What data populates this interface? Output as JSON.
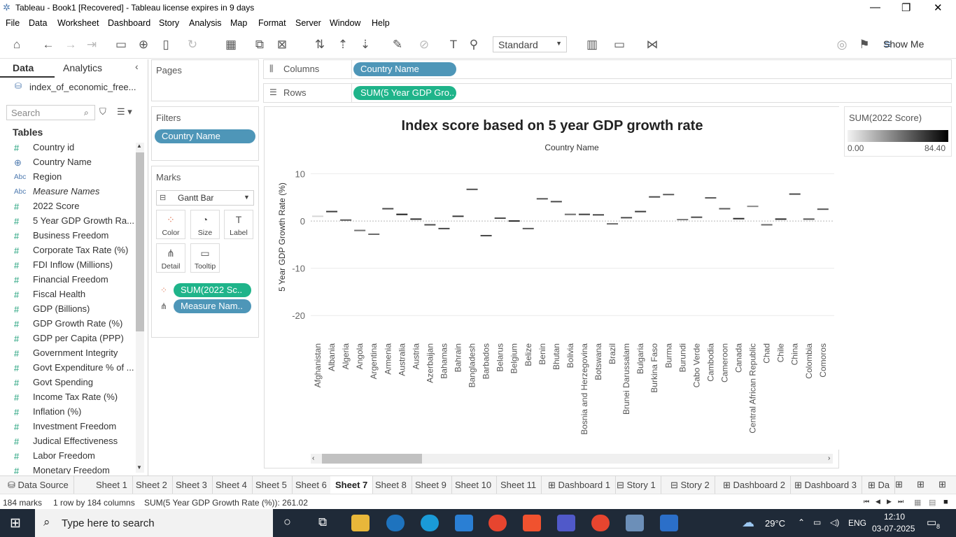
{
  "window": {
    "title": "Tableau - Book1 [Recovered] - Tableau license expires in 9 days"
  },
  "menu": [
    "File",
    "Data",
    "Worksheet",
    "Dashboard",
    "Story",
    "Analysis",
    "Map",
    "Format",
    "Server",
    "Window",
    "Help"
  ],
  "toolbar": {
    "fit_mode": "Standard",
    "show_me": "Show Me"
  },
  "left_pane": {
    "tab_data": "Data",
    "tab_analytics": "Analytics",
    "datasource": "index_of_economic_free...",
    "search_placeholder": "Search",
    "tables_header": "Tables",
    "fields": [
      {
        "icon": "#",
        "name": "Country id",
        "italic": false
      },
      {
        "icon": "globe",
        "name": "Country Name",
        "italic": false
      },
      {
        "icon": "Abc",
        "name": "Region",
        "italic": false
      },
      {
        "icon": "Abc",
        "name": "Measure Names",
        "italic": true
      },
      {
        "icon": "#",
        "name": "2022 Score",
        "italic": false
      },
      {
        "icon": "#",
        "name": "5 Year GDP Growth Ra...",
        "italic": false
      },
      {
        "icon": "#",
        "name": "Business Freedom",
        "italic": false
      },
      {
        "icon": "#",
        "name": "Corporate Tax Rate (%)",
        "italic": false
      },
      {
        "icon": "#",
        "name": "FDI Inflow (Millions)",
        "italic": false
      },
      {
        "icon": "#",
        "name": "Financial Freedom",
        "italic": false
      },
      {
        "icon": "#",
        "name": "Fiscal Health",
        "italic": false
      },
      {
        "icon": "#",
        "name": "GDP (Billions)",
        "italic": false
      },
      {
        "icon": "#",
        "name": "GDP Growth Rate (%)",
        "italic": false
      },
      {
        "icon": "#",
        "name": "GDP per Capita (PPP)",
        "italic": false
      },
      {
        "icon": "#",
        "name": "Government Integrity",
        "italic": false
      },
      {
        "icon": "#",
        "name": "Govt Expenditure % of ...",
        "italic": false
      },
      {
        "icon": "#",
        "name": "Govt Spending",
        "italic": false
      },
      {
        "icon": "#",
        "name": "Income Tax Rate (%)",
        "italic": false
      },
      {
        "icon": "#",
        "name": "Inflation (%)",
        "italic": false
      },
      {
        "icon": "#",
        "name": "Investment Freedom",
        "italic": false
      },
      {
        "icon": "#",
        "name": "Judical Effectiveness",
        "italic": false
      },
      {
        "icon": "#",
        "name": "Labor Freedom",
        "italic": false
      },
      {
        "icon": "#",
        "name": "Monetary Freedom",
        "italic": false
      }
    ]
  },
  "pages_label": "Pages",
  "filters": {
    "label": "Filters",
    "pill": "Country Name"
  },
  "marks": {
    "label": "Marks",
    "type": "Gantt Bar",
    "buttons": [
      "Color",
      "Size",
      "Label",
      "Detail",
      "Tooltip"
    ],
    "pill_color": "SUM(2022 Sc..",
    "pill_detail": "Measure Nam.."
  },
  "shelves": {
    "columns_label": "Columns",
    "columns_pill": "Country Name",
    "rows_label": "Rows",
    "rows_pill": "SUM(5 Year GDP Gro.."
  },
  "legend": {
    "title": "SUM(2022 Score)",
    "min": "0.00",
    "max": "84.40"
  },
  "chart_data": {
    "type": "gantt",
    "title": "Index score based on 5 year GDP growth rate",
    "column_header": "Country Name",
    "ylabel": "5 Year GDP Growth Rate (%)",
    "ylim": [
      -25,
      12
    ],
    "yticks": [
      10,
      0,
      -10,
      -20
    ],
    "categories": [
      "Afghanistan",
      "Albania",
      "Algeria",
      "Angola",
      "Argentina",
      "Armenia",
      "Australia",
      "Austria",
      "Azerbaijan",
      "Bahamas",
      "Bahrain",
      "Bangladesh",
      "Barbados",
      "Belarus",
      "Belgium",
      "Belize",
      "Benin",
      "Bhutan",
      "Bolivia",
      "Bosnia and Herzegovina",
      "Botswana",
      "Brazil",
      "Brunei Darussalam",
      "Bulgaria",
      "Burkina Faso",
      "Burma",
      "Burundi",
      "Cabo Verde",
      "Cambodia",
      "Cameroon",
      "Canada",
      "Central African Republic",
      "Chad",
      "Chile",
      "China",
      "Colombia",
      "Comoros"
    ],
    "values": [
      1.0,
      2.0,
      0.2,
      -2.0,
      -2.8,
      2.6,
      1.4,
      0.4,
      -0.8,
      -1.6,
      1.0,
      6.7,
      -3.1,
      0.6,
      0.0,
      -1.6,
      4.7,
      4.1,
      1.4,
      1.4,
      1.3,
      -0.6,
      0.7,
      2.0,
      5.1,
      5.6,
      0.3,
      0.8,
      4.9,
      2.6,
      0.5,
      3.1,
      -0.8,
      0.4,
      5.7,
      0.4,
      2.5
    ],
    "colors": [
      "#d6d6d6",
      "#3b3b3b",
      "#585858",
      "#707070",
      "#6a6a6a",
      "#4a4a4a",
      "#1a1a1a",
      "#303030",
      "#4a4a4a",
      "#484848",
      "#3a3a3a",
      "#505050",
      "#484848",
      "#4a4a4a",
      "#2a2a2a",
      "#5a5a5a",
      "#555555",
      "#4a4a4a",
      "#6a6a6a",
      "#3a3a3a",
      "#454545",
      "#6a6a6a",
      "#4a4a4a",
      "#3a3a3a",
      "#4a4a4a",
      "#5a5a5a",
      "#7a7a7a",
      "#4a4a4a",
      "#5a5a5a",
      "#5a5a5a",
      "#2a2a2a",
      "#8a8a8a",
      "#6a6a6a",
      "#2a2a2a",
      "#4a4a4a",
      "#555555",
      "#555555"
    ]
  },
  "sheet_tabs": [
    "Data Source",
    "Sheet 1",
    "Sheet 2",
    "Sheet 3",
    "Sheet 4",
    "Sheet 5",
    "Sheet 6",
    "Sheet 7",
    "Sheet 8",
    "Sheet 9",
    "Sheet 10",
    "Sheet 11",
    "Dashboard 1",
    "Story 1",
    "Story 2",
    "Dashboard 2",
    "Dashboard 3",
    "Da"
  ],
  "active_sheet": "Sheet 7",
  "status": {
    "marks": "184 marks",
    "dims": "1 row by 184 columns",
    "sum": "SUM(5 Year GDP Growth Rate (%)): 261.02"
  },
  "taskbar": {
    "search": "Type here to search",
    "temp": "29°C",
    "lang": "ENG",
    "time": "12:10",
    "date": "03-07-2025",
    "notif": "8"
  }
}
